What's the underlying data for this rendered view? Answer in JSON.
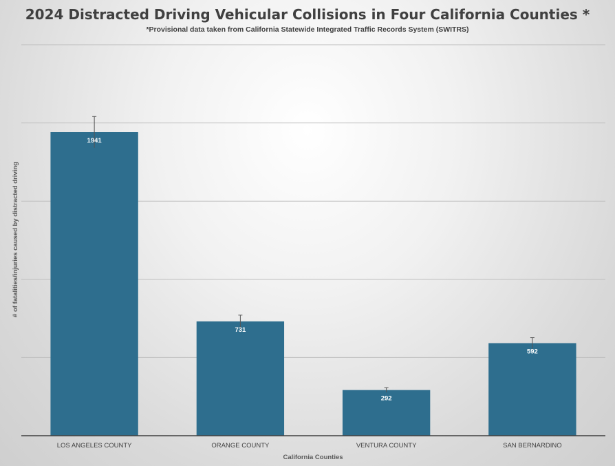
{
  "chart_data": {
    "type": "bar",
    "title": "2024 Distracted Driving Vehicular Collisions in Four California Counties *",
    "subtitle": "*Provisional data taken from California Statewide Integrated Traffic Records System (SWITRS)",
    "xlabel": "California Counties",
    "ylabel": "# of fatalities/injuries caused by distracted driving",
    "categories": [
      "LOS ANGELES COUNTY",
      "ORANGE COUNTY",
      "VENTURA COUNTY",
      "SAN BERNARDINO"
    ],
    "values": [
      1941,
      731,
      292,
      592
    ],
    "error_plus": [
      100,
      40,
      15,
      35
    ],
    "ylim": [
      0,
      2500
    ],
    "gridlines": [
      500,
      1000,
      1500,
      2000,
      2500
    ],
    "grid": true,
    "y_tick_labels_shown": false,
    "colors": {
      "bar": "#2e6e8e",
      "text": "#404040"
    }
  }
}
